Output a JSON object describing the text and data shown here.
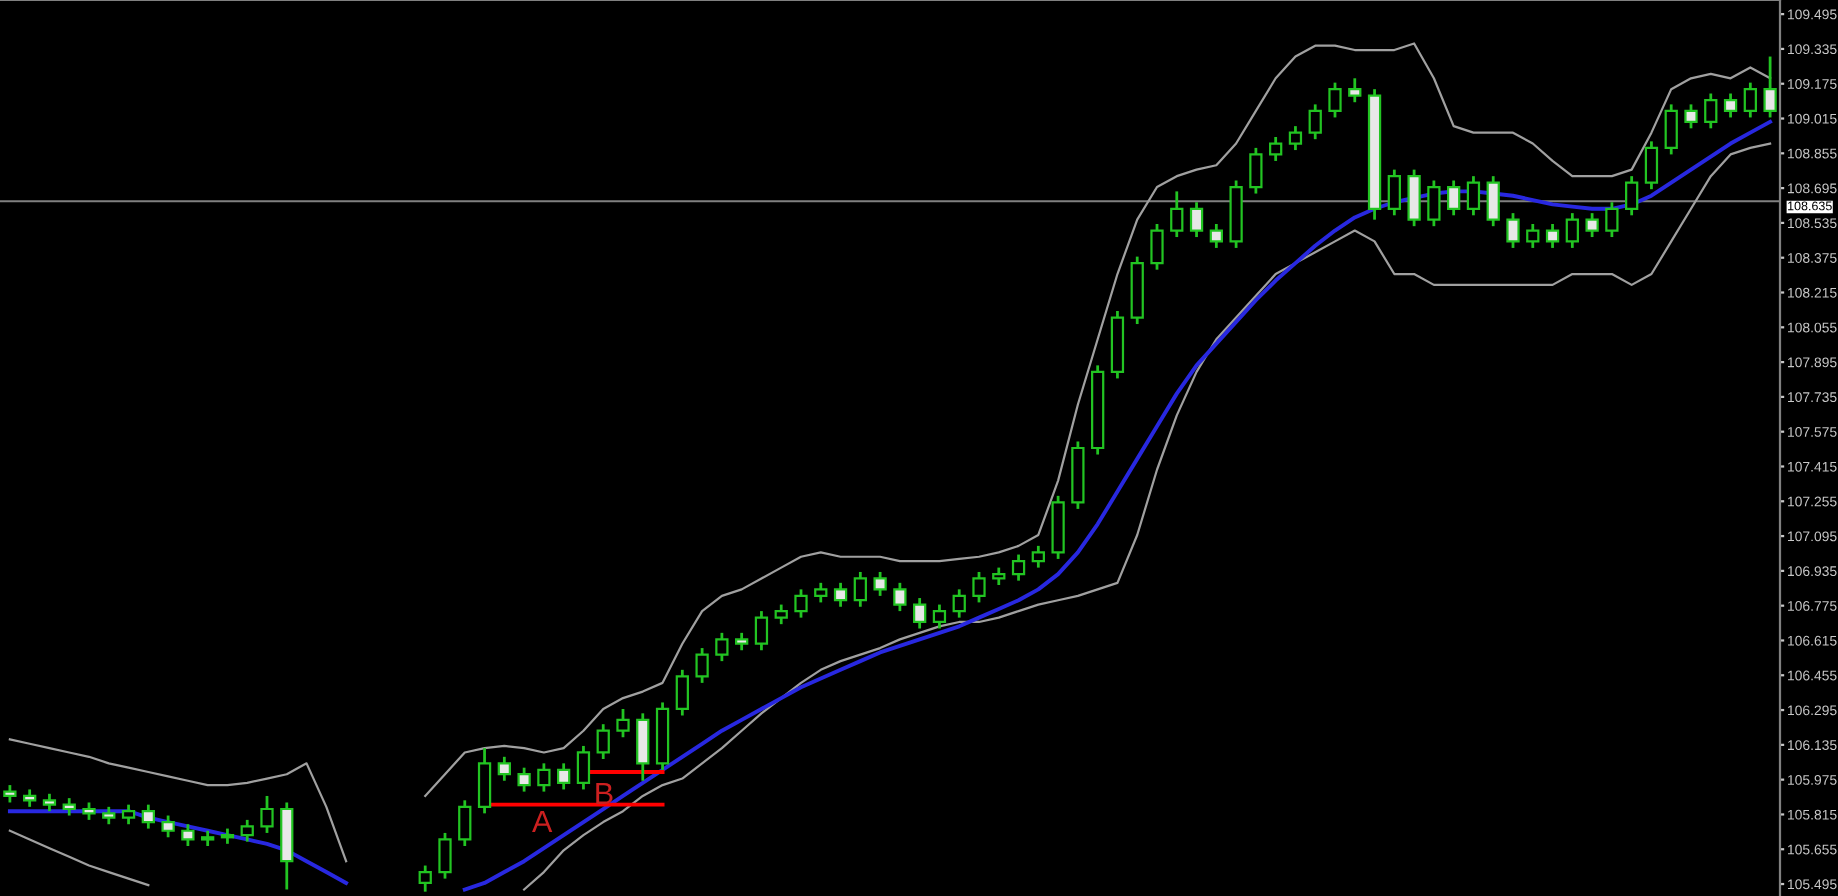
{
  "chart_data": {
    "type": "candlestick",
    "categories": [
      null,
      null,
      null,
      null,
      null,
      null,
      null,
      null,
      null,
      null,
      null,
      null,
      null,
      null,
      null,
      null,
      null,
      null,
      null,
      null,
      null,
      null,
      null,
      null,
      null,
      null,
      null,
      null,
      null,
      null,
      null,
      null,
      null,
      null,
      null,
      null,
      null,
      null,
      null,
      null,
      null,
      null,
      null,
      null,
      null,
      null,
      null,
      null,
      null,
      null,
      null,
      null,
      null,
      null,
      null,
      null,
      null,
      null,
      null,
      null,
      null,
      null,
      null,
      null,
      null,
      null,
      null,
      null,
      null,
      null,
      null,
      null,
      null,
      null,
      null,
      null,
      null,
      null,
      null,
      null,
      null,
      null,
      null,
      null,
      null,
      null,
      null,
      null,
      null,
      null
    ],
    "color": "#22c422",
    "ohlc": [
      [
        105.92,
        105.95,
        105.87,
        105.9
      ],
      [
        105.9,
        105.93,
        105.85,
        105.88
      ],
      [
        105.88,
        105.91,
        105.83,
        105.86
      ],
      [
        105.86,
        105.89,
        105.81,
        105.84
      ],
      [
        105.84,
        105.87,
        105.79,
        105.82
      ],
      [
        105.82,
        105.85,
        105.77,
        105.8
      ],
      [
        105.8,
        105.86,
        105.77,
        105.83
      ],
      [
        105.83,
        105.86,
        105.75,
        105.78
      ],
      [
        105.78,
        105.81,
        105.71,
        105.74
      ],
      [
        105.74,
        105.77,
        105.67,
        105.7
      ],
      [
        105.7,
        105.74,
        105.67,
        105.71
      ],
      [
        105.71,
        105.75,
        105.68,
        105.72
      ],
      [
        105.72,
        105.79,
        105.69,
        105.76
      ],
      [
        105.76,
        105.9,
        105.73,
        105.84
      ],
      [
        105.84,
        105.87,
        105.47,
        105.6
      ],
      null,
      null,
      null,
      null,
      null,
      null,
      [
        105.5,
        105.58,
        105.46,
        105.55
      ],
      [
        105.55,
        105.73,
        105.52,
        105.7
      ],
      [
        105.7,
        105.88,
        105.67,
        105.85
      ],
      [
        105.85,
        106.12,
        105.82,
        106.05
      ],
      [
        106.05,
        106.08,
        105.97,
        106.0
      ],
      [
        106.0,
        106.03,
        105.92,
        105.95
      ],
      [
        105.95,
        106.05,
        105.92,
        106.02
      ],
      [
        106.02,
        106.05,
        105.93,
        105.96
      ],
      [
        105.96,
        106.13,
        105.93,
        106.1
      ],
      [
        106.1,
        106.23,
        106.07,
        106.2
      ],
      [
        106.2,
        106.3,
        106.17,
        106.25
      ],
      [
        106.25,
        106.28,
        105.97,
        106.05
      ],
      [
        106.05,
        106.33,
        106.02,
        106.3
      ],
      [
        106.3,
        106.48,
        106.27,
        106.45
      ],
      [
        106.45,
        106.58,
        106.42,
        106.55
      ],
      [
        106.55,
        106.65,
        106.52,
        106.62
      ],
      [
        106.62,
        106.65,
        106.57,
        106.6
      ],
      [
        106.6,
        106.75,
        106.57,
        106.72
      ],
      [
        106.72,
        106.78,
        106.69,
        106.75
      ],
      [
        106.75,
        106.85,
        106.72,
        106.82
      ],
      [
        106.82,
        106.88,
        106.79,
        106.85
      ],
      [
        106.85,
        106.88,
        106.77,
        106.8
      ],
      [
        106.8,
        106.93,
        106.77,
        106.9
      ],
      [
        106.9,
        106.93,
        106.82,
        106.85
      ],
      [
        106.85,
        106.88,
        106.75,
        106.78
      ],
      [
        106.78,
        106.81,
        106.67,
        106.7
      ],
      [
        106.7,
        106.78,
        106.67,
        106.75
      ],
      [
        106.75,
        106.85,
        106.72,
        106.82
      ],
      [
        106.82,
        106.93,
        106.79,
        106.9
      ],
      [
        106.9,
        106.95,
        106.87,
        106.92
      ],
      [
        106.92,
        107.01,
        106.89,
        106.98
      ],
      [
        106.98,
        107.05,
        106.95,
        107.02
      ],
      [
        107.02,
        107.28,
        106.99,
        107.25
      ],
      [
        107.25,
        107.53,
        107.22,
        107.5
      ],
      [
        107.5,
        107.88,
        107.47,
        107.85
      ],
      [
        107.85,
        108.13,
        107.82,
        108.1
      ],
      [
        108.1,
        108.38,
        108.07,
        108.35
      ],
      [
        108.35,
        108.53,
        108.32,
        108.5
      ],
      [
        108.5,
        108.68,
        108.47,
        108.6
      ],
      [
        108.6,
        108.63,
        108.47,
        108.5
      ],
      [
        108.5,
        108.53,
        108.42,
        108.45
      ],
      [
        108.45,
        108.73,
        108.42,
        108.7
      ],
      [
        108.7,
        108.88,
        108.67,
        108.85
      ],
      [
        108.85,
        108.93,
        108.82,
        108.9
      ],
      [
        108.9,
        108.98,
        108.87,
        108.95
      ],
      [
        108.95,
        109.08,
        108.92,
        109.05
      ],
      [
        109.05,
        109.18,
        109.02,
        109.15
      ],
      [
        109.15,
        109.2,
        109.09,
        109.12
      ],
      [
        109.12,
        109.15,
        108.55,
        108.6
      ],
      [
        108.6,
        108.78,
        108.57,
        108.75
      ],
      [
        108.75,
        108.78,
        108.52,
        108.55
      ],
      [
        108.55,
        108.73,
        108.52,
        108.7
      ],
      [
        108.7,
        108.73,
        108.57,
        108.6
      ],
      [
        108.6,
        108.75,
        108.57,
        108.72
      ],
      [
        108.72,
        108.75,
        108.52,
        108.55
      ],
      [
        108.55,
        108.58,
        108.42,
        108.45
      ],
      [
        108.45,
        108.53,
        108.42,
        108.5
      ],
      [
        108.5,
        108.53,
        108.42,
        108.45
      ],
      [
        108.45,
        108.58,
        108.42,
        108.55
      ],
      [
        108.55,
        108.58,
        108.47,
        108.5
      ],
      [
        108.5,
        108.63,
        108.47,
        108.6
      ],
      [
        108.6,
        108.75,
        108.57,
        108.72
      ],
      [
        108.72,
        108.91,
        108.69,
        108.88
      ],
      [
        108.88,
        109.08,
        108.85,
        109.05
      ],
      [
        109.05,
        109.08,
        108.97,
        109.0
      ],
      [
        109.0,
        109.13,
        108.97,
        109.1
      ],
      [
        109.1,
        109.13,
        109.02,
        109.05
      ],
      [
        109.05,
        109.18,
        109.02,
        109.15
      ],
      [
        109.15,
        109.3,
        109.02,
        109.05
      ]
    ],
    "series": [
      {
        "type": "line",
        "color": "#a0a0a0",
        "values": [
          106.16,
          106.14,
          106.12,
          106.1,
          106.08,
          106.05,
          106.03,
          106.01,
          105.99,
          105.97,
          105.95,
          105.95,
          105.96,
          105.98,
          106.0,
          106.05,
          105.85,
          105.6,
          null,
          null,
          null,
          105.9,
          106.0,
          106.1,
          106.12,
          106.13,
          106.12,
          106.1,
          106.12,
          106.2,
          106.3,
          106.35,
          106.38,
          106.42,
          106.6,
          106.75,
          106.82,
          106.85,
          106.9,
          106.95,
          107.0,
          107.02,
          107.0,
          107.0,
          107.0,
          106.98,
          106.98,
          106.98,
          106.99,
          107.0,
          107.02,
          107.05,
          107.1,
          107.35,
          107.7,
          108.0,
          108.3,
          108.55,
          108.7,
          108.75,
          108.78,
          108.8,
          108.9,
          109.05,
          109.2,
          109.3,
          109.35,
          109.35,
          109.33,
          109.33,
          109.33,
          109.36,
          109.2,
          108.98,
          108.95,
          108.95,
          108.95,
          108.9,
          108.82,
          108.75,
          108.75,
          108.75,
          108.78,
          108.95,
          109.15,
          109.2,
          109.22,
          109.2,
          109.25,
          109.2
        ]
      },
      {
        "type": "line",
        "color": "#a0a0a0",
        "values": [
          105.74,
          105.7,
          105.66,
          105.62,
          105.58,
          105.55,
          105.52,
          105.49,
          null,
          null,
          null,
          null,
          null,
          null,
          null,
          null,
          null,
          null,
          null,
          null,
          null,
          null,
          null,
          null,
          null,
          null,
          105.47,
          105.55,
          105.65,
          105.72,
          105.78,
          105.83,
          105.9,
          105.95,
          105.98,
          106.05,
          106.12,
          106.2,
          106.28,
          106.35,
          106.42,
          106.48,
          106.52,
          106.55,
          106.58,
          106.62,
          106.65,
          106.68,
          106.7,
          106.7,
          106.72,
          106.75,
          106.78,
          106.8,
          106.82,
          106.85,
          106.88,
          107.1,
          107.4,
          107.65,
          107.85,
          108.0,
          108.1,
          108.2,
          108.3,
          108.35,
          108.4,
          108.45,
          108.5,
          108.45,
          108.3,
          108.3,
          108.25,
          108.25,
          108.25,
          108.25,
          108.25,
          108.25,
          108.25,
          108.3,
          108.3,
          108.3,
          108.25,
          108.3,
          108.45,
          108.6,
          108.75,
          108.85,
          108.88,
          108.9
        ]
      },
      {
        "type": "line",
        "color": "#2828e0",
        "values": [
          105.83,
          105.83,
          105.83,
          105.83,
          105.83,
          105.83,
          105.83,
          105.8,
          105.78,
          105.76,
          105.74,
          105.72,
          105.7,
          105.68,
          105.65,
          105.6,
          105.55,
          105.5,
          null,
          null,
          null,
          null,
          null,
          105.47,
          105.5,
          105.55,
          105.6,
          105.66,
          105.72,
          105.78,
          105.84,
          105.9,
          105.96,
          106.02,
          106.08,
          106.14,
          106.2,
          106.25,
          106.3,
          106.35,
          106.4,
          106.44,
          106.48,
          106.52,
          106.56,
          106.59,
          106.62,
          106.65,
          106.68,
          106.72,
          106.76,
          106.8,
          106.85,
          106.92,
          107.02,
          107.15,
          107.3,
          107.45,
          107.6,
          107.75,
          107.88,
          107.98,
          108.08,
          108.18,
          108.27,
          108.35,
          108.43,
          108.5,
          108.56,
          108.6,
          108.63,
          108.65,
          108.67,
          108.68,
          108.68,
          108.67,
          108.66,
          108.64,
          108.62,
          108.61,
          108.6,
          108.6,
          108.62,
          108.66,
          108.72,
          108.78,
          108.84,
          108.9,
          108.95,
          109.0
        ]
      },
      {
        "type": "line",
        "color": "#ff0000",
        "values": [
          null,
          null,
          null,
          null,
          null,
          null,
          null,
          null,
          null,
          null,
          null,
          null,
          null,
          null,
          null,
          null,
          null,
          null,
          null,
          null,
          null,
          null,
          null,
          null,
          105.86,
          105.86,
          105.86,
          105.86,
          105.86,
          105.86,
          105.86,
          105.86,
          105.86,
          105.86,
          null,
          null,
          null,
          null,
          null,
          null,
          null,
          null,
          null,
          null,
          null,
          null,
          null,
          null,
          null,
          null,
          null,
          null,
          null,
          null,
          null,
          null,
          null,
          null,
          null,
          null,
          null,
          null,
          null,
          null,
          null,
          null,
          null,
          null,
          null,
          null,
          null,
          null,
          null,
          null,
          null,
          null,
          null,
          null,
          null,
          null,
          null,
          null,
          null,
          null,
          null,
          null,
          null,
          null,
          null,
          null
        ]
      },
      {
        "type": "line",
        "color": "#ff0000",
        "values": [
          null,
          null,
          null,
          null,
          null,
          null,
          null,
          null,
          null,
          null,
          null,
          null,
          null,
          null,
          null,
          null,
          null,
          null,
          null,
          null,
          null,
          null,
          null,
          null,
          null,
          null,
          null,
          null,
          null,
          106.01,
          106.01,
          106.01,
          106.01,
          106.01,
          null,
          null,
          null,
          null,
          null,
          null,
          null,
          null,
          null,
          null,
          null,
          null,
          null,
          null,
          null,
          null,
          null,
          null,
          null,
          null,
          null,
          null,
          null,
          null,
          null,
          null,
          null,
          null,
          null,
          null,
          null,
          null,
          null,
          null,
          null,
          null,
          null,
          null,
          null,
          null,
          null,
          null,
          null,
          null,
          null,
          null,
          null,
          null,
          null,
          null,
          null,
          null,
          null,
          null,
          null,
          null
        ]
      }
    ],
    "ylim": [
      105.44,
      109.56
    ],
    "yticks": [
      109.495,
      109.335,
      109.175,
      109.015,
      108.855,
      108.695,
      108.535,
      108.375,
      108.215,
      108.055,
      107.895,
      107.735,
      107.575,
      107.415,
      107.255,
      107.095,
      106.935,
      106.775,
      106.615,
      106.455,
      106.295,
      106.135,
      105.975,
      105.815,
      105.655,
      105.495
    ],
    "ref_lines": [
      {
        "axis": "y",
        "value": 108.635,
        "label": "108.635",
        "color": "#808080"
      }
    ],
    "annotations": [
      "A",
      "B"
    ],
    "tick_labels": "y"
  }
}
